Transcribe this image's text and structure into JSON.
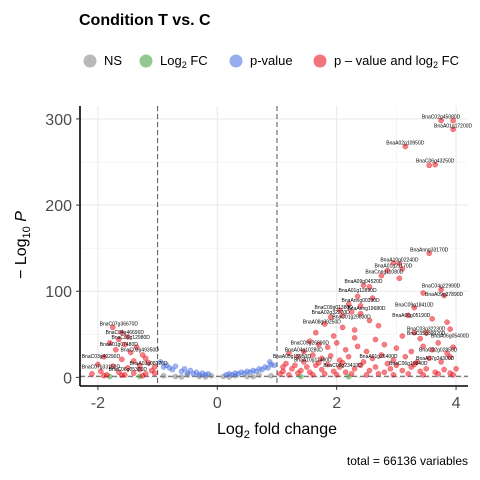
{
  "chart_data": {
    "type": "scatter",
    "title": "Condition T vs. C",
    "xlabel": "Log2 fold change",
    "ylabel": "−Log10 P",
    "caption": "total = 66136 variables",
    "xlim": [
      -2.3,
      4.2
    ],
    "ylim": [
      -10,
      315
    ],
    "x_ticks": [
      -2,
      0,
      2,
      4
    ],
    "y_ticks": [
      0,
      100,
      200,
      300
    ],
    "fc_cutoff": [
      -1,
      1
    ],
    "p_cutoff": 1.3,
    "grid": true,
    "legend_position": "top",
    "legend": [
      {
        "key": "ns",
        "label": "NS",
        "color": "#808080"
      },
      {
        "key": "fc",
        "label": "Log2 FC",
        "color": "#3a9a3a"
      },
      {
        "key": "p",
        "label": "p-value",
        "color": "#4169e1"
      },
      {
        "key": "both",
        "label": "p – value and log2 FC",
        "color": "#e8000b"
      }
    ],
    "series": [
      {
        "name": "NS",
        "points": [
          [
            -0.9,
            2
          ],
          [
            -0.7,
            1
          ],
          [
            -0.5,
            3
          ],
          [
            -0.3,
            1
          ],
          [
            -0.1,
            2
          ],
          [
            0.1,
            1
          ],
          [
            0.3,
            2
          ],
          [
            0.5,
            1
          ],
          [
            0.7,
            3
          ],
          [
            0.9,
            2
          ],
          [
            -0.6,
            0.5
          ],
          [
            0.2,
            0.5
          ],
          [
            0.6,
            0.8
          ],
          [
            -0.2,
            0.4
          ]
        ]
      },
      {
        "name": "Log2 FC",
        "points": [
          [
            -1.3,
            1
          ],
          [
            1.4,
            1
          ],
          [
            2.2,
            0.8
          ],
          [
            -1.8,
            1
          ]
        ]
      },
      {
        "name": "p-value",
        "points": [
          [
            -0.95,
            18
          ],
          [
            -0.85,
            14
          ],
          [
            -0.8,
            11
          ],
          [
            -0.75,
            9
          ],
          [
            -0.7,
            13
          ],
          [
            -0.6,
            7
          ],
          [
            -0.55,
            10
          ],
          [
            -0.5,
            5
          ],
          [
            -0.45,
            8
          ],
          [
            -0.4,
            4
          ],
          [
            -0.35,
            6
          ],
          [
            -0.3,
            3
          ],
          [
            -0.25,
            5
          ],
          [
            -0.2,
            3
          ],
          [
            -0.15,
            4
          ],
          [
            0.15,
            3
          ],
          [
            0.2,
            4
          ],
          [
            0.25,
            3
          ],
          [
            0.3,
            5
          ],
          [
            0.35,
            4
          ],
          [
            0.4,
            6
          ],
          [
            0.45,
            5
          ],
          [
            0.5,
            7
          ],
          [
            0.55,
            6
          ],
          [
            0.6,
            8
          ],
          [
            0.65,
            7
          ],
          [
            0.7,
            10
          ],
          [
            0.75,
            9
          ],
          [
            0.8,
            12
          ],
          [
            0.85,
            11
          ],
          [
            0.9,
            15
          ],
          [
            0.95,
            14
          ],
          [
            -0.9,
            12
          ],
          [
            0.88,
            18
          ]
        ]
      },
      {
        "name": "p – value and log2 FC",
        "points": [
          [
            3.75,
            298
          ],
          [
            3.95,
            298
          ],
          [
            3.95,
            288
          ],
          [
            3.15,
            268
          ],
          [
            3.65,
            247
          ],
          [
            3.55,
            246
          ],
          [
            3.55,
            144
          ],
          [
            2.95,
            133
          ],
          [
            3.05,
            132
          ],
          [
            2.85,
            124
          ],
          [
            3.1,
            126
          ],
          [
            2.75,
            118
          ],
          [
            3.05,
            115
          ],
          [
            3.75,
            102
          ],
          [
            2.45,
            107
          ],
          [
            2.55,
            105
          ],
          [
            3.45,
            98
          ],
          [
            3.8,
            95
          ],
          [
            2.35,
            94
          ],
          [
            2.6,
            92
          ],
          [
            2.2,
            85
          ],
          [
            2.4,
            83
          ],
          [
            3.3,
            81
          ],
          [
            2.05,
            78
          ],
          [
            2.25,
            76
          ],
          [
            2.1,
            72
          ],
          [
            2.4,
            74
          ],
          [
            3.2,
            72
          ],
          [
            3.6,
            68
          ],
          [
            3.85,
            64
          ],
          [
            1.9,
            70
          ],
          [
            2.55,
            66
          ],
          [
            1.8,
            62
          ],
          [
            2.1,
            58
          ],
          [
            2.3,
            55
          ],
          [
            2.7,
            60
          ],
          [
            3.3,
            52
          ],
          [
            3.5,
            52
          ],
          [
            3.9,
            56
          ],
          [
            1.65,
            52
          ],
          [
            1.95,
            48
          ],
          [
            2.3,
            46
          ],
          [
            2.65,
            44
          ],
          [
            3.1,
            48
          ],
          [
            3.4,
            45
          ],
          [
            3.7,
            40
          ],
          [
            1.55,
            42
          ],
          [
            1.7,
            38
          ],
          [
            1.85,
            35
          ],
          [
            2.0,
            40
          ],
          [
            2.15,
            32
          ],
          [
            2.35,
            36
          ],
          [
            2.5,
            30
          ],
          [
            2.8,
            38
          ],
          [
            3.0,
            34
          ],
          [
            3.25,
            30
          ],
          [
            3.45,
            36
          ],
          [
            3.6,
            32
          ],
          [
            3.85,
            28
          ],
          [
            3.95,
            35
          ],
          [
            1.2,
            28
          ],
          [
            1.35,
            24
          ],
          [
            1.45,
            30
          ],
          [
            1.6,
            26
          ],
          [
            1.75,
            22
          ],
          [
            1.9,
            25
          ],
          [
            2.05,
            20
          ],
          [
            2.2,
            24
          ],
          [
            2.45,
            18
          ],
          [
            2.6,
            22
          ],
          [
            2.75,
            26
          ],
          [
            2.95,
            20
          ],
          [
            3.15,
            24
          ],
          [
            3.35,
            18
          ],
          [
            3.55,
            22
          ],
          [
            3.75,
            18
          ],
          [
            3.9,
            24
          ],
          [
            1.1,
            12
          ],
          [
            1.15,
            16
          ],
          [
            1.25,
            10
          ],
          [
            1.3,
            14
          ],
          [
            1.4,
            8
          ],
          [
            1.5,
            12
          ],
          [
            1.55,
            6
          ],
          [
            1.65,
            14
          ],
          [
            1.75,
            9
          ],
          [
            1.85,
            15
          ],
          [
            1.95,
            7
          ],
          [
            2.05,
            12
          ],
          [
            2.15,
            6
          ],
          [
            2.3,
            10
          ],
          [
            2.4,
            14
          ],
          [
            2.55,
            8
          ],
          [
            2.65,
            12
          ],
          [
            2.8,
            6
          ],
          [
            2.9,
            10
          ],
          [
            3.0,
            14
          ],
          [
            3.1,
            8
          ],
          [
            3.25,
            12
          ],
          [
            3.4,
            7
          ],
          [
            3.5,
            10
          ],
          [
            3.65,
            6
          ],
          [
            3.8,
            9
          ],
          [
            3.9,
            5
          ],
          [
            4.0,
            10
          ],
          [
            1.05,
            4
          ],
          [
            1.2,
            3
          ],
          [
            1.35,
            5
          ],
          [
            1.6,
            3
          ],
          [
            1.8,
            4
          ],
          [
            2.0,
            3
          ],
          [
            2.25,
            4
          ],
          [
            2.5,
            3
          ],
          [
            2.7,
            4
          ],
          [
            2.95,
            3
          ],
          [
            3.2,
            4
          ],
          [
            3.45,
            3
          ],
          [
            3.7,
            4
          ],
          [
            3.95,
            3
          ],
          [
            1.1,
            7
          ],
          [
            1.45,
            18
          ],
          [
            1.7,
            17
          ],
          [
            2.1,
            17
          ],
          [
            2.85,
            16
          ],
          [
            3.3,
            15
          ],
          [
            -1.75,
            58
          ],
          [
            -1.6,
            52
          ],
          [
            -1.5,
            47
          ],
          [
            -1.65,
            44
          ],
          [
            -1.8,
            40
          ],
          [
            -1.55,
            38
          ],
          [
            -1.35,
            35
          ],
          [
            -1.7,
            32
          ],
          [
            -1.45,
            29
          ],
          [
            -1.25,
            26
          ],
          [
            -1.9,
            24
          ],
          [
            -1.6,
            21
          ],
          [
            -1.4,
            19
          ],
          [
            -1.15,
            17
          ],
          [
            -2.0,
            15
          ],
          [
            -1.75,
            13
          ],
          [
            -1.5,
            11
          ],
          [
            -1.3,
            9
          ],
          [
            -1.1,
            8
          ],
          [
            -1.95,
            7
          ],
          [
            -1.65,
            6
          ],
          [
            -1.4,
            5
          ],
          [
            -1.2,
            4
          ],
          [
            -2.1,
            4
          ],
          [
            -1.85,
            3
          ],
          [
            -1.55,
            3
          ],
          [
            -1.05,
            5
          ],
          [
            -1.3,
            14
          ],
          [
            -1.2,
            22
          ],
          [
            -1.05,
            12
          ],
          [
            -1.9,
            2
          ],
          [
            -1.6,
            2.5
          ],
          [
            -1.25,
            2
          ]
        ]
      }
    ],
    "annotations": [
      {
        "label": "BnaC02g45080D",
        "x": 3.75,
        "y": 298
      },
      {
        "label": "BnaA01g17200D",
        "x": 3.95,
        "y": 288
      },
      {
        "label": "BnaA02g10950D",
        "x": 3.15,
        "y": 268
      },
      {
        "label": "BnaC06g43250D",
        "x": 3.65,
        "y": 247
      },
      {
        "label": "BnaAnng33170D",
        "x": 3.55,
        "y": 144
      },
      {
        "label": "BnaA10g02240D",
        "x": 3.05,
        "y": 132
      },
      {
        "label": "BnaA01g21170D",
        "x": 2.95,
        "y": 125
      },
      {
        "label": "BnaCnng11080D",
        "x": 2.8,
        "y": 118
      },
      {
        "label": "BnaA09g04520D",
        "x": 2.45,
        "y": 107
      },
      {
        "label": "BnaC04g22990D",
        "x": 3.75,
        "y": 102
      },
      {
        "label": "BnaA01g12890D",
        "x": 2.35,
        "y": 97
      },
      {
        "label": "BnaA09g37890D",
        "x": 3.8,
        "y": 92
      },
      {
        "label": "BnaAnng00330D",
        "x": 2.4,
        "y": 85
      },
      {
        "label": "BnaC09g18410D",
        "x": 3.3,
        "y": 80
      },
      {
        "label": "BnaC09g01380D",
        "x": 1.95,
        "y": 77
      },
      {
        "label": "BnaAnng19680D",
        "x": 2.5,
        "y": 76
      },
      {
        "label": "BnaA02g32370D",
        "x": 1.9,
        "y": 71
      },
      {
        "label": "BnaA06g05190D",
        "x": 3.25,
        "y": 68
      },
      {
        "label": "BnaC01g29830D",
        "x": 2.25,
        "y": 66
      },
      {
        "label": "BnaA08g09250D",
        "x": 1.75,
        "y": 60
      },
      {
        "label": "BnaC03g32230D",
        "x": 3.5,
        "y": 52
      },
      {
        "label": "BnaC05g30920D",
        "x": 3.5,
        "y": 47
      },
      {
        "label": "BnaA06g05400D",
        "x": 3.9,
        "y": 44
      },
      {
        "label": "BnaC07g36670D",
        "x": -1.65,
        "y": 58
      },
      {
        "label": "BnaC04g46690D",
        "x": -1.55,
        "y": 48
      },
      {
        "label": "BnaC09g12980D",
        "x": -1.45,
        "y": 42
      },
      {
        "label": "BnaA01g07480D",
        "x": -1.65,
        "y": 34
      },
      {
        "label": "BnaC03g49350D",
        "x": -1.3,
        "y": 28
      },
      {
        "label": "BnaC03g40290D",
        "x": -1.95,
        "y": 20
      },
      {
        "label": "BnaA03g08270D",
        "x": -1.15,
        "y": 12
      },
      {
        "label": "BnaC07g33150D",
        "x": -1.95,
        "y": 8
      },
      {
        "label": "BnaC06g05390D",
        "x": -1.5,
        "y": 5
      },
      {
        "label": "BnaC09g26890D",
        "x": 1.55,
        "y": 36
      },
      {
        "label": "BnaA04g10280D",
        "x": 1.45,
        "y": 28
      },
      {
        "label": "BnaA05g15950D",
        "x": 1.25,
        "y": 20
      },
      {
        "label": "BnaA10g11460D",
        "x": 1.6,
        "y": 16
      },
      {
        "label": "BnaC02g02850D",
        "x": 3.7,
        "y": 28
      },
      {
        "label": "BnaA07g24300D",
        "x": 3.65,
        "y": 18
      },
      {
        "label": "BnaC06g19840D",
        "x": 3.2,
        "y": 12
      },
      {
        "label": "BnaA01g26400D",
        "x": 2.7,
        "y": 20
      },
      {
        "label": "BnaC08g23410D",
        "x": 2.1,
        "y": 10
      }
    ]
  }
}
